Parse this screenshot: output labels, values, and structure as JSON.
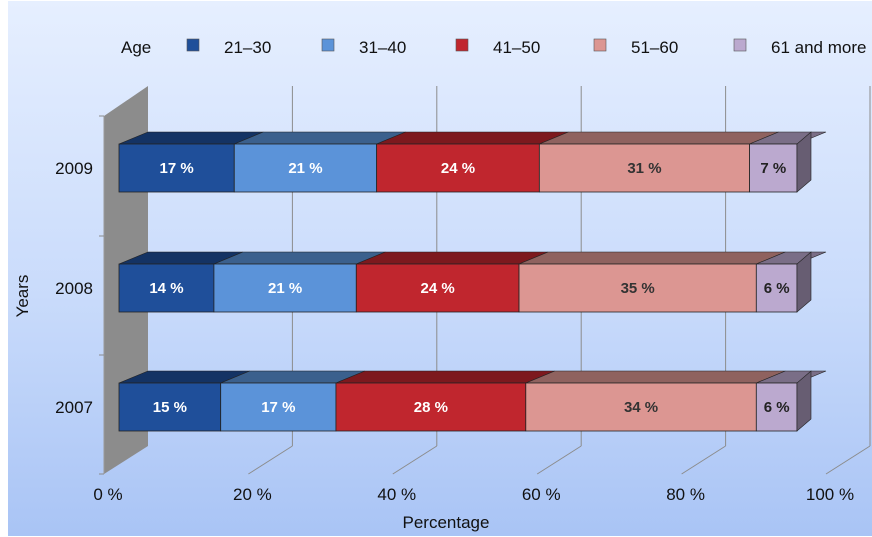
{
  "chart_data": {
    "type": "bar",
    "orientation": "horizontal",
    "stacked": true,
    "percent_stacked": true,
    "style": "3d",
    "xlabel": "Percentage",
    "ylabel": "Years",
    "xlim": [
      0,
      100
    ],
    "x_ticks": [
      "0 %",
      "20 %",
      "40 %",
      "60 %",
      "80 %",
      "100 %"
    ],
    "legend": {
      "title": "Age",
      "placement": "top"
    },
    "categories": [
      "2009",
      "2008",
      "2007"
    ],
    "series": [
      {
        "name": "21–30",
        "color": "#1f4f9a",
        "values": [
          17,
          14,
          15
        ],
        "labels": [
          "17 %",
          "14 %",
          "15 %"
        ],
        "label_color": "#ffffff"
      },
      {
        "name": "31–40",
        "color": "#5b93d9",
        "values": [
          21,
          21,
          17
        ],
        "labels": [
          "21 %",
          "21 %",
          "17 %"
        ],
        "label_color": "#ffffff"
      },
      {
        "name": "41–50",
        "color": "#c0262e",
        "values": [
          24,
          24,
          28
        ],
        "labels": [
          "24 %",
          "24 %",
          "28 %"
        ],
        "label_color": "#ffffff"
      },
      {
        "name": "51–60",
        "color": "#dc9692",
        "values": [
          31,
          35,
          34
        ],
        "labels": [
          "31 %",
          "35 %",
          "34 %"
        ],
        "label_color": "#333333"
      },
      {
        "name": "61 and more",
        "color": "#bba9cf",
        "values": [
          7,
          6,
          6
        ],
        "labels": [
          "7 %",
          "6 %",
          "6 %"
        ],
        "label_color": "#222222"
      }
    ],
    "grid": true
  }
}
